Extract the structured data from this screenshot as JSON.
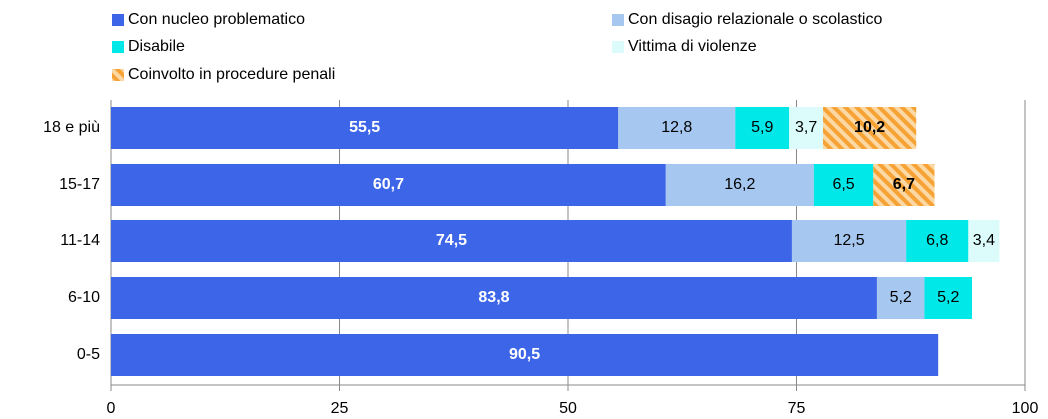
{
  "chart_data": {
    "type": "bar",
    "orientation": "horizontal",
    "stacked": true,
    "categories": [
      "18 e più",
      "15-17",
      "11-14",
      "6-10",
      "0-5"
    ],
    "series": [
      {
        "name": "Con nucleo problematico",
        "color": "#3d65e8",
        "values": [
          55.5,
          60.7,
          74.5,
          83.8,
          90.5
        ],
        "value_labels": [
          "55,5",
          "60,7",
          "74,5",
          "83,8",
          "90,5"
        ]
      },
      {
        "name": "Con disagio relazionale o scolastico",
        "color": "#a6c8f0",
        "values": [
          12.8,
          16.2,
          12.5,
          5.2,
          null
        ],
        "value_labels": [
          "12,8",
          "16,2",
          "12,5",
          "5,2",
          null
        ]
      },
      {
        "name": "Disabile",
        "color": "#00e8e8",
        "values": [
          5.9,
          6.5,
          6.8,
          5.2,
          null
        ],
        "value_labels": [
          "5,9",
          "6,5",
          "6,8",
          "5,2",
          null
        ]
      },
      {
        "name": "Vittima di violenze",
        "color": "#dcfcfc",
        "values": [
          3.7,
          null,
          3.4,
          null,
          null
        ],
        "value_labels": [
          "3,7",
          null,
          "3,4",
          null,
          null
        ]
      },
      {
        "name": "Coinvolto in procedure penali",
        "color": "#f7a234",
        "hatch": true,
        "values": [
          10.2,
          6.7,
          null,
          null,
          null
        ],
        "value_labels": [
          "10,2",
          "6,7",
          null,
          null,
          null
        ]
      }
    ],
    "xlim": [
      0,
      100
    ],
    "xticks": [
      0,
      25,
      50,
      75,
      100
    ],
    "grid": true,
    "legend": "top"
  }
}
